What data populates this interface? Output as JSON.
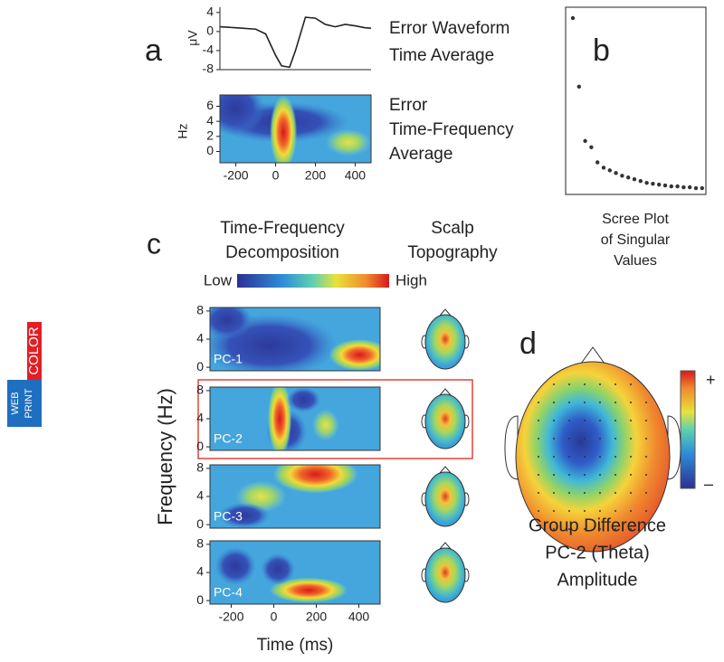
{
  "badge": {
    "web": "WEB",
    "print": "PRINT",
    "color": "COLOR"
  },
  "panel_a": {
    "label": "a",
    "waveform": {
      "type": "line",
      "caption": [
        "Error Waveform",
        "Time Average"
      ],
      "ylabel": "μV",
      "x": [
        -280,
        -200,
        -100,
        -50,
        0,
        30,
        70,
        100,
        150,
        200,
        250,
        300,
        350,
        400,
        450,
        480
      ],
      "values": [
        1,
        0.8,
        0.5,
        -0.5,
        -5,
        -7.2,
        -7.5,
        -4,
        3,
        2.8,
        1.5,
        1,
        1.5,
        1.2,
        0.8,
        0.7
      ],
      "xlim": [
        -280,
        480
      ],
      "ylim": [
        -8,
        5.1
      ],
      "yticks": [
        4,
        0,
        -4,
        -8
      ]
    },
    "tf": {
      "type": "heatmap",
      "caption": [
        "Error",
        "Time-Frequency",
        "Average"
      ],
      "ylabel": "Hz",
      "xlim": [
        -280,
        480
      ],
      "ylim": [
        -1.5,
        7.5
      ],
      "yticks": [
        0,
        2,
        4,
        6
      ],
      "xticks": [
        -200,
        0,
        200,
        400
      ]
    }
  },
  "panel_b": {
    "label": "b",
    "type": "scatter",
    "caption": [
      "Scree Plot",
      "of Singular",
      "Values"
    ],
    "values": [
      195,
      118,
      57,
      50,
      33,
      27,
      24,
      21,
      18,
      16,
      14,
      12,
      10,
      9,
      8,
      7,
      6,
      6,
      5,
      5,
      4,
      4
    ]
  },
  "panel_c": {
    "label": "c",
    "headers": [
      [
        "Time-Frequency",
        "Decomposition"
      ],
      [
        "Scalp",
        "Topography"
      ]
    ],
    "colorbar": {
      "low": "Low",
      "high": "High"
    },
    "ylabel": "Frequency (Hz)",
    "xlabel": "Time (ms)",
    "xlim": [
      -300,
      500
    ],
    "xticks": [
      -200,
      0,
      200,
      400
    ],
    "ylim": [
      -0.5,
      8.5
    ],
    "yticks": [
      0,
      4,
      8
    ],
    "components": [
      "PC-1",
      "PC-2",
      "PC-3",
      "PC-4"
    ]
  },
  "panel_d": {
    "label": "d",
    "colorbar": {
      "high": "+",
      "low": "–"
    },
    "caption": [
      "Group Difference",
      "PC-2 (Theta)",
      "Amplitude"
    ]
  }
}
